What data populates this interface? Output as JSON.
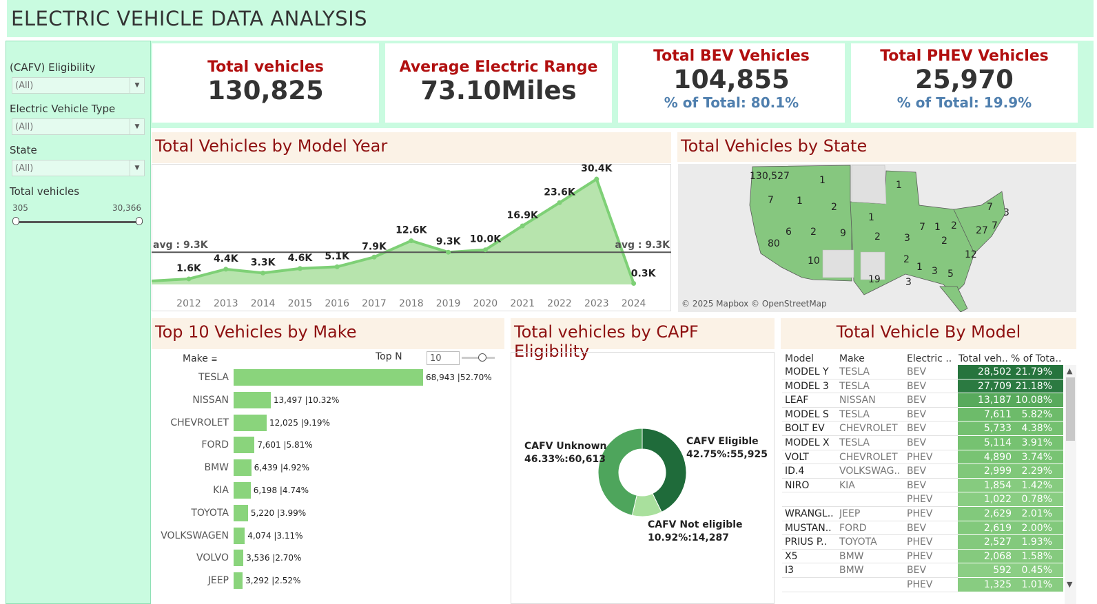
{
  "title": "ELECTRIC VEHICLE DATA ANALYSIS",
  "filters": {
    "cafv": {
      "label": "(CAFV) Eligibility",
      "value": "(All)"
    },
    "ev_type": {
      "label": "Electric Vehicle Type",
      "value": "(All)"
    },
    "state": {
      "label": "State",
      "value": "(All)"
    },
    "total": {
      "label": "Total vehicles",
      "min": "305",
      "max": "30,366"
    }
  },
  "kpis": [
    {
      "title": "Total vehicles",
      "value": "130,825"
    },
    {
      "title": "Average Electric Range",
      "value": "73.10Miles"
    },
    {
      "title": "Total BEV Vehicles",
      "value": "104,855",
      "sub": "% of Total: 80.1%"
    },
    {
      "title": "Total PHEV Vehicles",
      "value": "25,970",
      "sub": "% of Total: 19.9%"
    }
  ],
  "year_chart": {
    "title": "Total Vehicles by Model Year",
    "avg_label": "avg : 9.3K",
    "avg": 9.3,
    "ylim": [
      0,
      32
    ],
    "years": [
      "2012",
      "2013",
      "2014",
      "2015",
      "2016",
      "2017",
      "2018",
      "2019",
      "2020",
      "2021",
      "2022",
      "2023",
      "2024"
    ],
    "values": [
      1.6,
      4.4,
      3.3,
      4.6,
      5.1,
      7.9,
      12.6,
      9.3,
      10.0,
      16.9,
      23.6,
      30.4,
      0.3
    ],
    "labels": [
      "1.6K",
      "4.4K",
      "3.3K",
      "4.6K",
      "5.1K",
      "7.9K",
      "12.6K",
      "9.3K",
      "10.0K",
      "16.9K",
      "23.6K",
      "30.4K",
      "0.3K"
    ]
  },
  "state_map": {
    "title": "Total Vehicles by State",
    "attribution": "© 2025 Mapbox © OpenStreetMap",
    "labels": [
      "130,527",
      "1",
      "1",
      "7",
      "1",
      "2",
      "1",
      "6",
      "2",
      "9",
      "2",
      "3",
      "7",
      "1",
      "2",
      "7",
      "27",
      "7",
      "3",
      "80",
      "10",
      "2",
      "1",
      "12",
      "2",
      "19",
      "3",
      "3",
      "5"
    ]
  },
  "make_chart": {
    "title": "Top 10 Vehicles by Make",
    "axis_label": "Make",
    "top_n_label": "Top N",
    "top_n_value": "10",
    "makes": [
      "TESLA",
      "NISSAN",
      "CHEVROLET",
      "FORD",
      "BMW",
      "KIA",
      "TOYOTA",
      "VOLKSWAGEN",
      "VOLVO",
      "JEEP"
    ],
    "values": [
      68943,
      13497,
      12025,
      7601,
      6439,
      6198,
      5220,
      4074,
      3536,
      3292
    ],
    "labels": [
      "68,943 |52.70%",
      "13,497 |10.32%",
      "12,025 |9.19%",
      "7,601 |5.81%",
      "6,439 |4.92%",
      "6,198 |4.74%",
      "5,220 |3.99%",
      "4,074 |3.11%",
      "3,536 |2.70%",
      "3,292 |2.52%"
    ]
  },
  "cafv_chart": {
    "title": "Total vehicles by CAPF Eligibility",
    "slices": [
      {
        "name": "CAFV Eligible",
        "value": 55925,
        "label": "42.75%:55,925",
        "color": "#1f6b3a"
      },
      {
        "name": "CAFV Not eligible",
        "value": 14287,
        "label": "10.92%:14,287",
        "color": "#a9e09d"
      },
      {
        "name": "CAFV Unknown",
        "value": 60613,
        "label": "46.33%:60,613",
        "color": "#4ea55c"
      }
    ]
  },
  "model_table": {
    "title": "Total Vehicle By Model",
    "columns": [
      "Model",
      "Make",
      "Electric ..",
      "Total veh..",
      "% of Tota.."
    ],
    "rows": [
      {
        "model": "MODEL Y",
        "make": "TESLA",
        "type": "BEV",
        "total": "28,502",
        "pct": "21.79%",
        "shade": "#26743d"
      },
      {
        "model": "MODEL 3",
        "make": "TESLA",
        "type": "BEV",
        "total": "27,709",
        "pct": "21.18%",
        "shade": "#2b7a41"
      },
      {
        "model": "LEAF",
        "make": "NISSAN",
        "type": "BEV",
        "total": "13,187",
        "pct": "10.08%",
        "shade": "#58aa5c"
      },
      {
        "model": "MODEL S",
        "make": "TESLA",
        "type": "BEV",
        "total": "7,611",
        "pct": "5.82%",
        "shade": "#6dbb6a"
      },
      {
        "model": "BOLT EV",
        "make": "CHEVROLET",
        "type": "BEV",
        "total": "5,733",
        "pct": "4.38%",
        "shade": "#74c070"
      },
      {
        "model": "MODEL X",
        "make": "TESLA",
        "type": "BEV",
        "total": "5,114",
        "pct": "3.91%",
        "shade": "#76c271"
      },
      {
        "model": "VOLT",
        "make": "CHEVROLET",
        "type": "PHEV",
        "total": "4,890",
        "pct": "3.74%",
        "shade": "#78c373"
      },
      {
        "model": "ID.4",
        "make": "VOLKSWAG..",
        "type": "BEV",
        "total": "2,999",
        "pct": "2.29%",
        "shade": "#80c87a"
      },
      {
        "model": "NIRO",
        "make": "KIA",
        "type": "BEV",
        "total": "1,854",
        "pct": "1.42%",
        "shade": "#86cb7f"
      },
      {
        "model": "",
        "make": "",
        "type": "PHEV",
        "total": "1,022",
        "pct": "0.78%",
        "shade": "#89cd82"
      },
      {
        "model": "WRANGL..",
        "make": "JEEP",
        "type": "PHEV",
        "total": "2,629",
        "pct": "2.01%",
        "shade": "#82c97c"
      },
      {
        "model": "MUSTAN..",
        "make": "FORD",
        "type": "BEV",
        "total": "2,619",
        "pct": "2.00%",
        "shade": "#82c97c"
      },
      {
        "model": "PRIUS P..",
        "make": "TOYOTA",
        "type": "PHEV",
        "total": "2,527",
        "pct": "1.93%",
        "shade": "#83c97d"
      },
      {
        "model": "X5",
        "make": "BMW",
        "type": "PHEV",
        "total": "2,068",
        "pct": "1.58%",
        "shade": "#85ca7e"
      },
      {
        "model": "I3",
        "make": "BMW",
        "type": "BEV",
        "total": "592",
        "pct": "0.45%",
        "shade": "#8bce84"
      },
      {
        "model": "",
        "make": "",
        "type": "PHEV",
        "total": "1,325",
        "pct": "1.01%",
        "shade": "#88cc81"
      }
    ]
  },
  "chart_data": [
    {
      "type": "area",
      "title": "Total Vehicles by Model Year",
      "x": [
        2012,
        2013,
        2014,
        2015,
        2016,
        2017,
        2018,
        2019,
        2020,
        2021,
        2022,
        2023,
        2024
      ],
      "values": [
        1.6,
        4.4,
        3.3,
        4.6,
        5.1,
        7.9,
        12.6,
        9.3,
        10.0,
        16.9,
        23.6,
        30.4,
        0.3
      ],
      "reference_line": 9.3
    },
    {
      "type": "bar",
      "title": "Top 10 Vehicles by Make",
      "categories": [
        "TESLA",
        "NISSAN",
        "CHEVROLET",
        "FORD",
        "BMW",
        "KIA",
        "TOYOTA",
        "VOLKSWAGEN",
        "VOLVO",
        "JEEP"
      ],
      "values": [
        68943,
        13497,
        12025,
        7601,
        6439,
        6198,
        5220,
        4074,
        3536,
        3292
      ]
    },
    {
      "type": "pie",
      "title": "Total vehicles by CAPF Eligibility",
      "categories": [
        "CAFV Eligible",
        "CAFV Not eligible",
        "CAFV Unknown"
      ],
      "values": [
        55925,
        14287,
        60613
      ]
    }
  ]
}
